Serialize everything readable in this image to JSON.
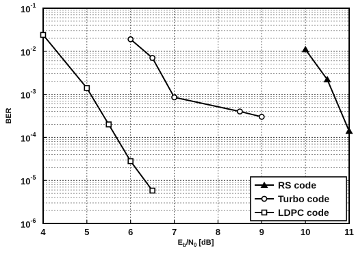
{
  "chart_data": {
    "type": "line",
    "xlabel_main": "E",
    "xlabel_sub1": "b",
    "xlabel_mid": "/N",
    "xlabel_sub2": "0",
    "xlabel_unit": " [dB]",
    "ylabel": "BER",
    "xlim": [
      4,
      11
    ],
    "ylim": [
      1e-06,
      0.1
    ],
    "yscale": "log",
    "grid": true,
    "legend_position": "bottom-right",
    "x_ticks": [
      "4",
      "5",
      "6",
      "7",
      "8",
      "9",
      "10",
      "11"
    ],
    "y_ticks": [
      {
        "base": "10",
        "exp": "-6"
      },
      {
        "base": "10",
        "exp": "-5"
      },
      {
        "base": "10",
        "exp": "-4"
      },
      {
        "base": "10",
        "exp": "-3"
      },
      {
        "base": "10",
        "exp": "-2"
      },
      {
        "base": "10",
        "exp": "-1"
      }
    ],
    "series": [
      {
        "name": "RS code",
        "marker": "triangle",
        "x": [
          10,
          10.5,
          11
        ],
        "y": [
          0.011,
          0.0022,
          0.00014
        ]
      },
      {
        "name": "Turbo code",
        "marker": "circle",
        "x": [
          6,
          6.5,
          7,
          8.5,
          9
        ],
        "y": [
          0.019,
          0.007,
          0.00085,
          0.0004,
          0.0003
        ]
      },
      {
        "name": "LDPC code",
        "marker": "square",
        "x": [
          4,
          5,
          5.5,
          6,
          6.5
        ],
        "y": [
          0.024,
          0.0014,
          0.0002,
          2.8e-05,
          5.8e-06
        ]
      }
    ]
  }
}
